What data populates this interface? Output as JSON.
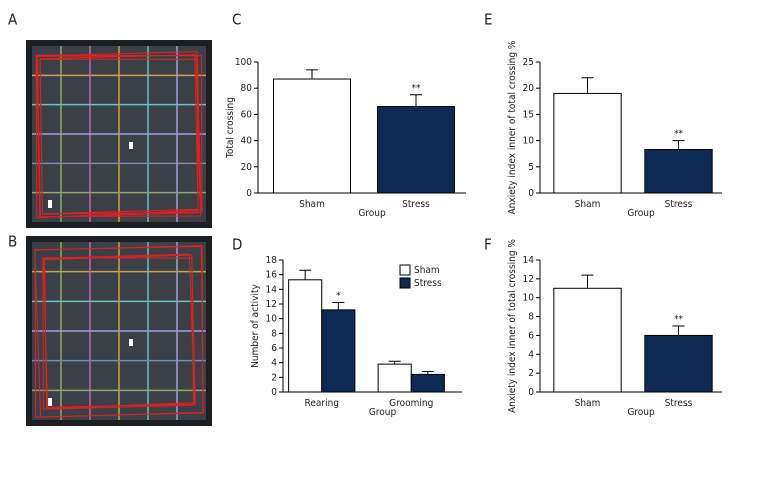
{
  "photo_panels": [
    {
      "label": "A"
    },
    {
      "label": "B"
    }
  ],
  "chart_data": [
    {
      "type": "bar",
      "panel": "C",
      "ylabel": "Total crossing",
      "xlabel": "Group",
      "categories": [
        "Sham",
        "Stress"
      ],
      "ylim": [
        0,
        100
      ],
      "yticks": [
        0,
        20,
        40,
        60,
        80,
        100
      ],
      "series": [
        {
          "colors": [
            "#ffffff",
            "#0d2b52"
          ],
          "values": [
            87,
            66
          ],
          "errors": [
            7,
            9
          ],
          "significance": [
            null,
            "**"
          ]
        }
      ]
    },
    {
      "type": "bar",
      "panel": "E",
      "ylabel": "Anxiety index inner of total crossing %",
      "xlabel": "Group",
      "categories": [
        "Sham",
        "Stress"
      ],
      "ylim": [
        0,
        25
      ],
      "yticks": [
        0,
        5,
        10,
        15,
        20,
        25
      ],
      "series": [
        {
          "colors": [
            "#ffffff",
            "#0d2b52"
          ],
          "values": [
            19,
            8.3
          ],
          "errors": [
            3,
            1.7
          ],
          "significance": [
            null,
            "**"
          ]
        }
      ]
    },
    {
      "type": "bar",
      "panel": "D",
      "ylabel": "Number of activity",
      "xlabel": "Group",
      "categories": [
        "Rearing",
        "Grooming"
      ],
      "ylim": [
        0,
        18
      ],
      "yticks": [
        0,
        2,
        4,
        6,
        8,
        10,
        12,
        14,
        16,
        18
      ],
      "legend": "top-right",
      "series": [
        {
          "name": "Sham",
          "color": "#ffffff",
          "values": [
            15.3,
            3.8
          ],
          "errors": [
            1.3,
            0.4
          ],
          "significance": [
            null,
            null
          ]
        },
        {
          "name": "Stress",
          "color": "#0d2b52",
          "values": [
            11.2,
            2.4
          ],
          "errors": [
            1,
            0.4
          ],
          "significance": [
            "*",
            null
          ]
        }
      ]
    },
    {
      "type": "bar",
      "panel": "F",
      "ylabel": "Anxiety index inner of total crossing %",
      "xlabel": "Group",
      "categories": [
        "Sham",
        "Stress"
      ],
      "ylim": [
        0,
        14
      ],
      "yticks": [
        0,
        2,
        4,
        6,
        8,
        10,
        12,
        14
      ],
      "series": [
        {
          "colors": [
            "#ffffff",
            "#0d2b52"
          ],
          "values": [
            11,
            6
          ],
          "errors": [
            1.4,
            1
          ],
          "significance": [
            null,
            "**"
          ]
        }
      ]
    }
  ]
}
